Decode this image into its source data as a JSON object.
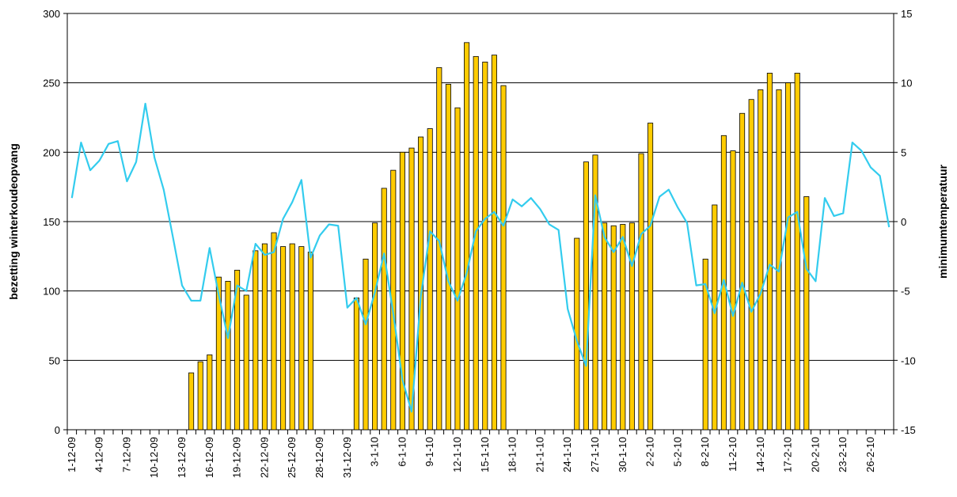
{
  "chart_data": {
    "type": "bar_line",
    "ylabel": "bezetting winterkoudeopvang",
    "y2label": "minimumtemperatuur",
    "categories": [
      "1-12-09",
      null,
      null,
      "4-12-09",
      null,
      null,
      "7-12-09",
      null,
      null,
      "10-12-09",
      null,
      null,
      "13-12-09",
      null,
      null,
      "16-12-09",
      null,
      null,
      "19-12-09",
      null,
      null,
      "22-12-09",
      null,
      null,
      "25-12-09",
      null,
      null,
      "28-12-09",
      null,
      null,
      "31-12-09",
      null,
      null,
      "3-1-10",
      null,
      null,
      "6-1-10",
      null,
      null,
      "9-1-10",
      null,
      null,
      "12-1-10",
      null,
      null,
      "15-1-10",
      null,
      null,
      "18-1-10",
      null,
      null,
      "21-1-10",
      null,
      null,
      "24-1-10",
      null,
      null,
      "27-1-10",
      null,
      null,
      "30-1-10",
      null,
      null,
      "2-2-10",
      null,
      null,
      "5-2-10",
      null,
      null,
      "8-2-10",
      null,
      null,
      "11-2-10",
      null,
      null,
      "14-2-10",
      null,
      null,
      "17-2-10",
      null,
      null,
      "20-2-10",
      null,
      null,
      "23-2-10",
      null,
      null,
      "26-2-10",
      null,
      null
    ],
    "series": [
      {
        "type": "bar",
        "color": "#ffcc00",
        "values": [
          null,
          null,
          null,
          null,
          null,
          null,
          null,
          null,
          null,
          null,
          null,
          null,
          null,
          41,
          49,
          54,
          110,
          107,
          115,
          97,
          129,
          134,
          142,
          132,
          134,
          132,
          128,
          null,
          null,
          null,
          null,
          95,
          123,
          149,
          174,
          187,
          200,
          203,
          211,
          217,
          261,
          249,
          232,
          279,
          269,
          265,
          270,
          248,
          null,
          null,
          null,
          null,
          null,
          null,
          null,
          138,
          193,
          198,
          149,
          147,
          148,
          149,
          199,
          221,
          null,
          null,
          null,
          null,
          null,
          123,
          162,
          212,
          201,
          228,
          238,
          245,
          257,
          245,
          250,
          257,
          168,
          null,
          null,
          null,
          null,
          null,
          null,
          null,
          null,
          null
        ]
      },
      {
        "type": "line",
        "axis": "y2",
        "color": "#33ccee",
        "values": [
          1.7,
          5.7,
          3.7,
          4.4,
          5.6,
          5.8,
          2.9,
          4.3,
          8.5,
          4.6,
          2.3,
          -1.1,
          -4.6,
          -5.7,
          -5.7,
          -1.9,
          -5.3,
          -8.4,
          -4.6,
          -5.0,
          -1.6,
          -2.4,
          -2.2,
          0.2,
          1.4,
          3.0,
          -2.6,
          -1.0,
          -0.2,
          -0.3,
          -6.2,
          -5.5,
          -7.4,
          -5.1,
          -2.3,
          -6.6,
          -11.4,
          -13.7,
          -5.4,
          -0.7,
          -1.4,
          -4.3,
          -5.7,
          -3.7,
          -0.7,
          0.2,
          0.7,
          -0.3,
          1.6,
          1.1,
          1.7,
          0.9,
          -0.2,
          -0.6,
          -6.3,
          -8.6,
          -10.4,
          1.9,
          -1.1,
          -2.2,
          -1.1,
          -3.2,
          -0.9,
          -0.3,
          1.8,
          2.3,
          1.0,
          -0.1,
          -4.6,
          -4.5,
          -6.6,
          -4.2,
          -6.8,
          -4.4,
          -6.5,
          -5.2,
          -3.1,
          -3.6,
          0.3,
          0.7,
          -3.4,
          -4.3,
          1.7,
          0.4,
          0.6,
          5.7,
          5.1,
          3.9,
          3.3,
          -0.4
        ]
      }
    ],
    "ylim": [
      0,
      300
    ],
    "yticks": [
      0,
      50,
      100,
      150,
      200,
      250,
      300
    ],
    "y2lim": [
      -15,
      15
    ],
    "y2ticks": [
      -15,
      -10,
      -5,
      0,
      5,
      10,
      15
    ],
    "grid": true
  }
}
